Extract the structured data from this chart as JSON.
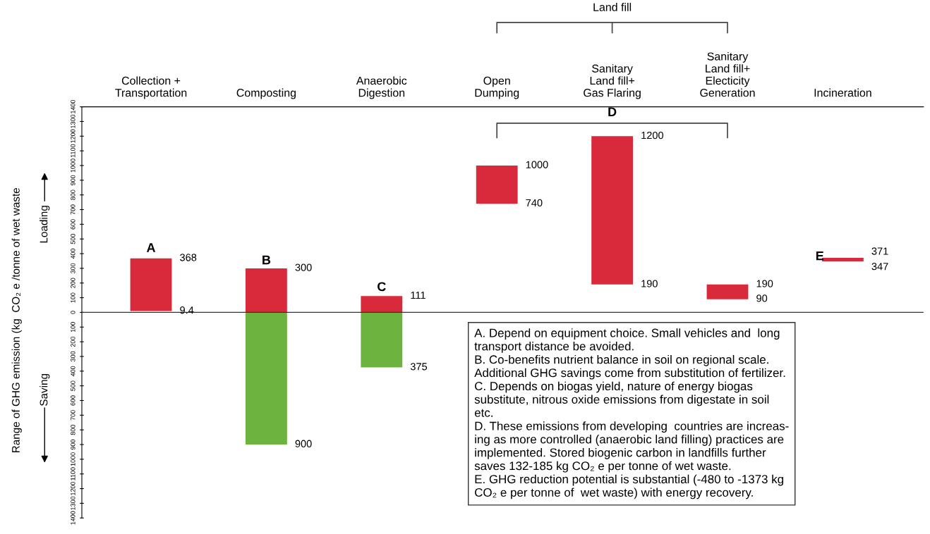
{
  "chart_data": {
    "type": "bar",
    "ylabel": "Range of GHG emission (kg  CO₂ e /tonne of wet waste",
    "categories": [
      "Collection +\nTransportation",
      "Composting",
      "Anaerobic\nDigestion",
      "Open\nDumping",
      "Sanitary\nLand fill+\nGas Flaring",
      "Sanitary\nLand fill+\nElecticity\nGeneration",
      "Incineration"
    ],
    "series": [
      {
        "color": "#d92a3b",
        "base": [
          9.4,
          0,
          0,
          740,
          190,
          90,
          347
        ],
        "values": [
          358.6,
          300,
          111,
          260,
          1010,
          100,
          24
        ]
      },
      {
        "color": "#6db33f",
        "base": [
          null,
          0,
          0,
          null,
          null,
          null,
          null
        ],
        "values": [
          null,
          -900,
          -375,
          null,
          null,
          null,
          null
        ]
      }
    ],
    "ylim": [
      -1400,
      1400
    ],
    "yticks": [
      1400,
      1300,
      1200,
      1100,
      1000,
      900,
      800,
      700,
      600,
      500,
      400,
      300,
      200,
      100,
      0,
      {
        "value": -100,
        "label": "100"
      },
      {
        "value": -200,
        "label": "200"
      },
      {
        "value": -300,
        "label": "300"
      },
      {
        "value": -400,
        "label": "400"
      },
      {
        "value": -500,
        "label": "500"
      },
      {
        "value": -600,
        "label": "600"
      },
      {
        "value": -700,
        "label": "700"
      },
      {
        "value": -800,
        "label": "800"
      },
      {
        "value": -900,
        "label": "900"
      },
      {
        "value": -1000,
        "label": "1000"
      },
      {
        "value": -1100,
        "label": "1100"
      },
      {
        "value": -1200,
        "label": "1200"
      },
      {
        "value": -1300,
        "label": "1300"
      },
      {
        "value": -1400,
        "label": "1400"
      }
    ],
    "ref_lines": [
      {
        "axis": "y",
        "value": 0,
        "color": "#333333"
      }
    ],
    "annotations": [
      "Land fill",
      "A",
      "B",
      "C",
      "D",
      "E",
      "Loading",
      "Saving",
      "A. Depend on equipment choice. Small vehicles and  long\ntransport distance be avoided.\nB. Co-benefits nutrient balance in soil on regional scale.\nAdditional GHG savings come from substitution of fertilizer.\nC. Depends on biogas yield, nature of energy biogas\nsubstitute, nitrous oxide emissions from digestate in soil\netc.\nD. These emissions from developing  countries are increas-\ning as more controlled (anaerobic land filling) practices are\nimplemented. Stored biogenic carbon in landfills further\nsaves 132-185 kg CO₂ e per tonne of wet waste.\nE. GHG reduction potential is substantial (-480 to -1373 kg\nCO₂ e per tonne of  wet waste) with energy recovery.",
      "368",
      "9.4",
      "300",
      "900",
      "111",
      "375",
      "1000",
      "740",
      "1200",
      "190",
      "190",
      "90",
      "371",
      "347"
    ]
  }
}
